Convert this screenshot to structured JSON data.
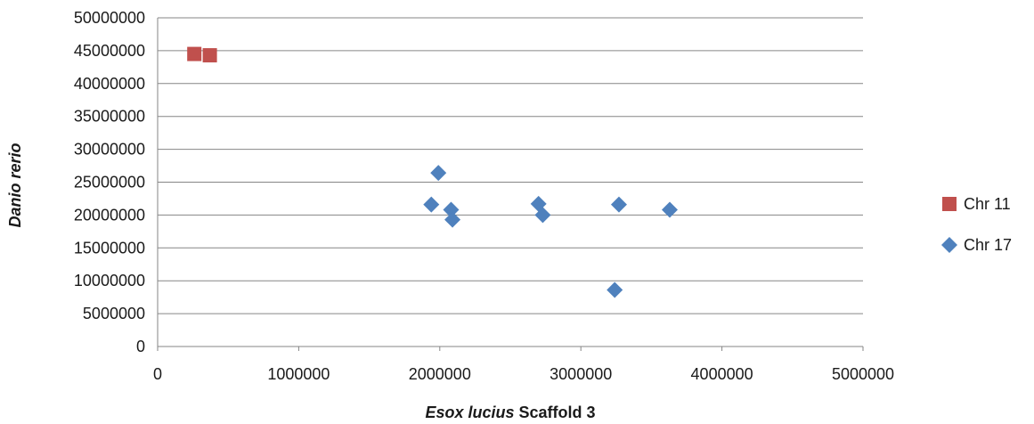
{
  "chart_data": {
    "type": "scatter",
    "xlabel": {
      "italic": "Esox lucius",
      "rest": " Scaffold 3"
    },
    "ylabel": "Danio rerio",
    "xlim": [
      0,
      5000000
    ],
    "ylim": [
      0,
      50000000
    ],
    "x_ticks": [
      "0",
      "1000000",
      "2000000",
      "3000000",
      "4000000",
      "5000000"
    ],
    "y_ticks": [
      "0",
      "5000000",
      "10000000",
      "15000000",
      "20000000",
      "25000000",
      "30000000",
      "35000000",
      "40000000",
      "45000000",
      "50000000"
    ],
    "grid": "horizontal",
    "legend_position": "right",
    "series": [
      {
        "name": "Chr 11",
        "marker": "square",
        "color": "#c0504d",
        "points": [
          {
            "x": 260000,
            "y": 44500000
          },
          {
            "x": 370000,
            "y": 44300000
          }
        ]
      },
      {
        "name": "Chr 17",
        "marker": "diamond",
        "color": "#4f81bd",
        "points": [
          {
            "x": 1940000,
            "y": 21600000
          },
          {
            "x": 1990000,
            "y": 26400000
          },
          {
            "x": 2080000,
            "y": 20800000
          },
          {
            "x": 2090000,
            "y": 19300000
          },
          {
            "x": 2700000,
            "y": 21700000
          },
          {
            "x": 2730000,
            "y": 20000000
          },
          {
            "x": 3240000,
            "y": 8600000
          },
          {
            "x": 3270000,
            "y": 21600000
          },
          {
            "x": 3630000,
            "y": 20800000
          }
        ]
      }
    ]
  }
}
